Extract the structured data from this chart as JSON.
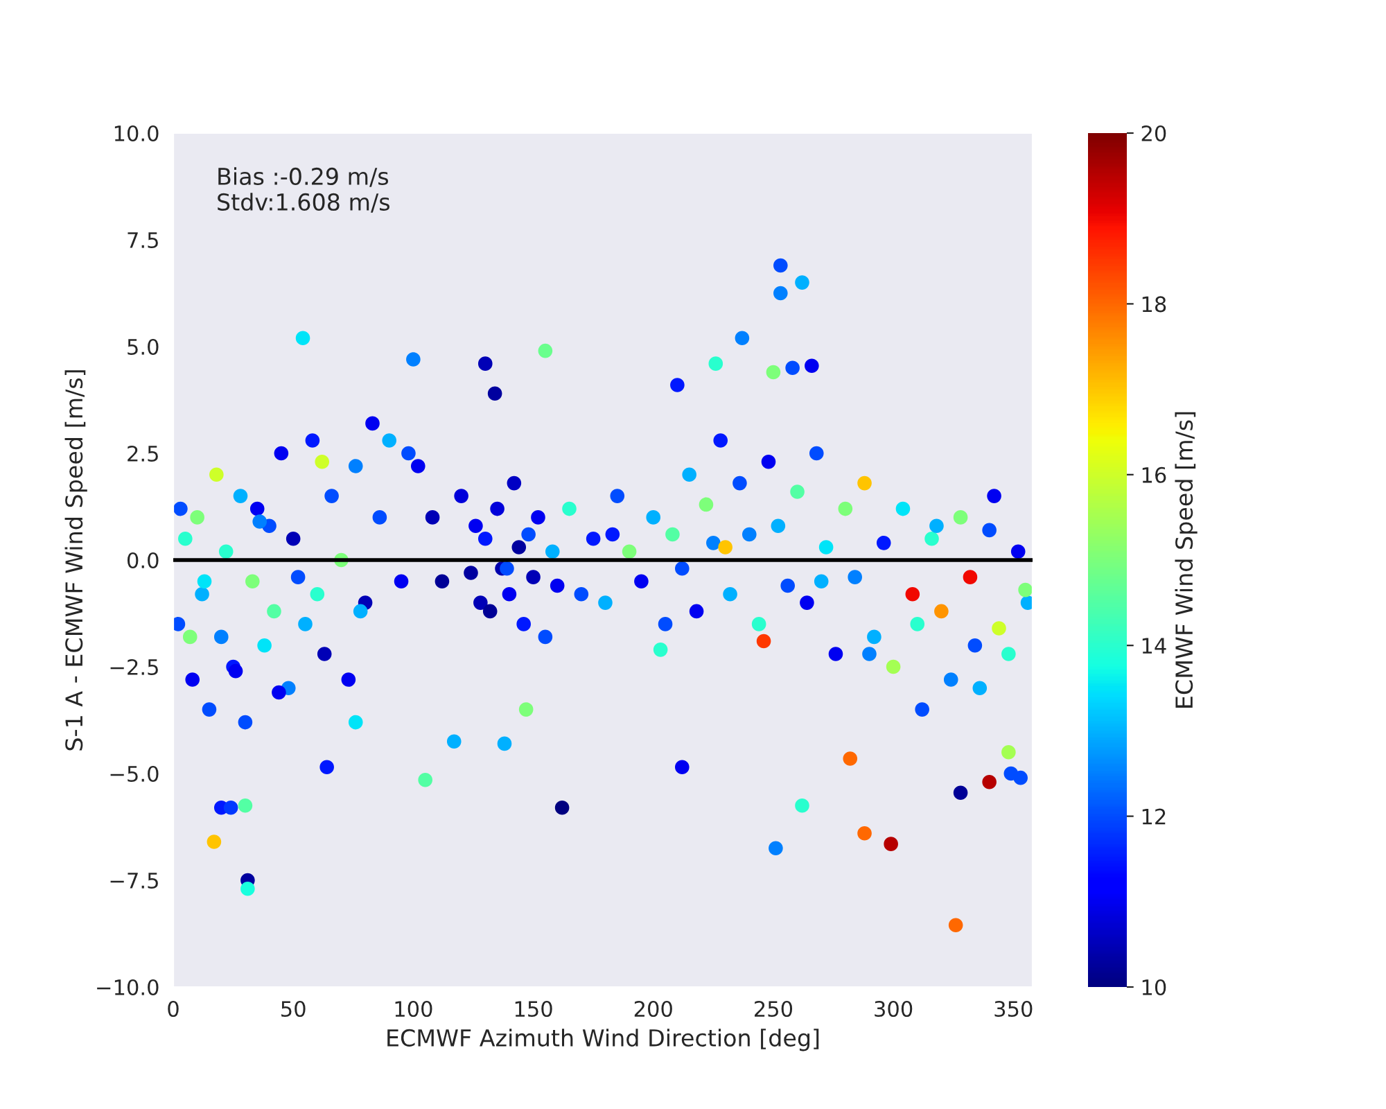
{
  "chart_data": {
    "type": "scatter",
    "xlabel": "ECMWF Azimuth Wind Direction [deg]",
    "ylabel": "S-1 A - ECMWF Wind Speed [m/s]",
    "clabel": "ECMWF Wind Speed [m/s]",
    "xlim": [
      0,
      358
    ],
    "xticks": [
      0,
      50,
      100,
      150,
      200,
      250,
      300,
      350
    ],
    "ylim": [
      -10,
      10
    ],
    "yticks": [
      {
        "value": -10,
        "label": "−10.0"
      },
      {
        "value": -7.5,
        "label": "−7.5"
      },
      {
        "value": -5,
        "label": "−5.0"
      },
      {
        "value": -2.5,
        "label": "−2.5"
      },
      {
        "value": 0,
        "label": "0.0"
      },
      {
        "value": 2.5,
        "label": "2.5"
      },
      {
        "value": 5,
        "label": "5.0"
      },
      {
        "value": 7.5,
        "label": "7.5"
      },
      {
        "value": 10,
        "label": "10.0"
      }
    ],
    "clim": [
      10,
      20
    ],
    "cticks": [
      10,
      12,
      14,
      16,
      18,
      20
    ],
    "grid": false,
    "marker": "circle",
    "annotations": [
      "Bias :-0.29 m/s",
      "Stdv:1.608 m/s"
    ],
    "ref_lines": [
      {
        "axis": "y",
        "value": 0,
        "color": "#000000"
      }
    ],
    "series": [
      {
        "x": [
          54,
          100,
          155,
          130,
          134,
          253,
          253,
          258,
          262,
          266,
          237,
          250,
          226,
          210,
          31,
          31,
          17,
          20,
          24,
          30,
          299,
          288,
          282,
          326,
          340,
          262,
          251,
          212,
          162,
          117,
          105,
          138,
          64,
          76,
          353,
          349,
          328,
          348,
          2,
          5,
          8,
          10,
          12,
          15,
          18,
          20,
          22,
          25,
          28,
          30,
          33,
          35,
          38,
          40,
          42,
          45,
          48,
          50,
          55,
          58,
          60,
          63,
          66,
          70,
          73,
          76,
          80,
          83,
          86,
          90,
          95,
          98,
          102,
          108,
          112,
          120,
          124,
          126,
          128,
          130,
          132,
          135,
          137,
          140,
          142,
          144,
          146,
          148,
          150,
          152,
          155,
          158,
          160,
          165,
          170,
          175,
          180,
          185,
          190,
          195,
          200,
          205,
          208,
          212,
          215,
          218,
          222,
          225,
          228,
          232,
          236,
          240,
          244,
          248,
          252,
          256,
          260,
          264,
          268,
          272,
          276,
          280,
          284,
          288,
          292,
          296,
          300,
          304,
          308,
          312,
          316,
          320,
          324,
          328,
          332,
          336,
          340,
          344,
          348,
          352,
          356,
          3,
          7,
          13,
          26,
          36,
          44,
          52,
          62,
          78,
          139,
          147,
          183,
          203,
          230,
          246,
          270,
          290,
          310,
          318,
          334,
          342,
          355
        ],
        "values": [
          5.2,
          4.7,
          4.9,
          4.6,
          3.9,
          6.9,
          6.25,
          4.5,
          6.5,
          4.55,
          5.2,
          4.4,
          4.6,
          4.1,
          -7.5,
          -7.7,
          -6.6,
          -5.8,
          -5.8,
          -5.75,
          -6.65,
          -6.4,
          -4.65,
          -8.55,
          -5.2,
          -5.75,
          -6.75,
          -4.85,
          -5.8,
          -4.25,
          -5.15,
          -4.3,
          -4.85,
          -3.8,
          -5.1,
          -5.0,
          -5.45,
          -4.5,
          -1.5,
          0.5,
          -2.8,
          1.0,
          -0.8,
          -3.5,
          2.0,
          -1.8,
          0.2,
          -2.5,
          1.5,
          -3.8,
          -0.5,
          1.2,
          -2.0,
          0.8,
          -1.2,
          2.5,
          -3.0,
          0.5,
          -1.5,
          2.8,
          -0.8,
          -2.2,
          1.5,
          0.0,
          -2.8,
          2.2,
          -1.0,
          3.2,
          1.0,
          2.8,
          -0.5,
          2.5,
          2.2,
          1.0,
          -0.5,
          1.5,
          -0.3,
          0.8,
          -1.0,
          0.5,
          -1.2,
          1.2,
          -0.2,
          -0.8,
          1.8,
          0.3,
          -1.5,
          0.6,
          -0.4,
          1.0,
          -1.8,
          0.2,
          -0.6,
          1.2,
          -0.8,
          0.5,
          -1.0,
          1.5,
          0.2,
          -0.5,
          1.0,
          -1.5,
          0.6,
          -0.2,
          2.0,
          -1.2,
          1.3,
          0.4,
          2.8,
          -0.8,
          1.8,
          0.6,
          -1.5,
          2.3,
          0.8,
          -0.6,
          1.6,
          -1.0,
          2.5,
          0.3,
          -2.2,
          1.2,
          -0.4,
          1.8,
          -1.8,
          0.4,
          -2.5,
          1.2,
          -0.8,
          -3.5,
          0.5,
          -1.2,
          -2.8,
          1.0,
          -0.4,
          -3.0,
          0.7,
          -1.6,
          -2.2,
          0.2,
          -1.0,
          1.2,
          -1.8,
          -0.5,
          -2.6,
          0.9,
          -3.1,
          -0.4,
          2.3,
          -1.2,
          -0.2,
          -3.5,
          0.6,
          -2.1,
          0.3,
          -1.9,
          -0.5,
          -2.2,
          -1.5,
          0.8,
          -2.0,
          1.5,
          -0.7
        ],
        "cvalues": [
          13.5,
          12.5,
          14.8,
          10.5,
          10.3,
          12,
          12.5,
          12,
          13,
          11,
          12.5,
          15,
          14,
          11.5,
          10.3,
          13.8,
          17,
          11.5,
          11.8,
          14.5,
          19.5,
          18,
          18,
          18,
          19.5,
          14,
          12.5,
          11,
          10,
          13,
          14.5,
          13,
          11.5,
          13.5,
          12,
          12,
          10.2,
          15.5,
          12,
          14,
          11,
          15,
          13,
          12,
          16,
          12.5,
          14,
          11.5,
          13,
          12,
          15,
          11,
          13.5,
          12,
          14.5,
          11,
          12.5,
          10.5,
          13,
          11.5,
          14,
          10.5,
          12,
          15,
          11,
          12.5,
          10.5,
          11,
          12,
          13,
          11,
          12,
          11,
          10.5,
          10.2,
          10.8,
          10.3,
          11,
          10.5,
          11.5,
          10.2,
          10.8,
          10.4,
          11,
          10.6,
          10.3,
          11.5,
          12,
          10.5,
          11,
          12,
          13,
          11,
          14,
          12,
          11.5,
          13,
          12,
          15,
          11,
          13,
          12,
          14.5,
          12,
          13,
          11,
          15,
          12.5,
          11.5,
          13,
          12,
          12.5,
          14,
          11,
          13,
          12,
          14.5,
          11,
          12,
          13.5,
          11,
          15,
          12.5,
          17,
          13,
          11.5,
          15.5,
          13.5,
          19,
          12,
          14,
          17.5,
          12.5,
          15,
          19,
          13,
          12,
          16,
          14,
          11,
          13,
          12,
          15,
          13.5,
          11,
          12.5,
          11,
          12,
          16,
          13,
          12,
          15,
          11.5,
          14,
          17,
          18.5,
          13,
          12.5,
          14,
          13,
          12,
          11,
          15
        ]
      }
    ]
  }
}
